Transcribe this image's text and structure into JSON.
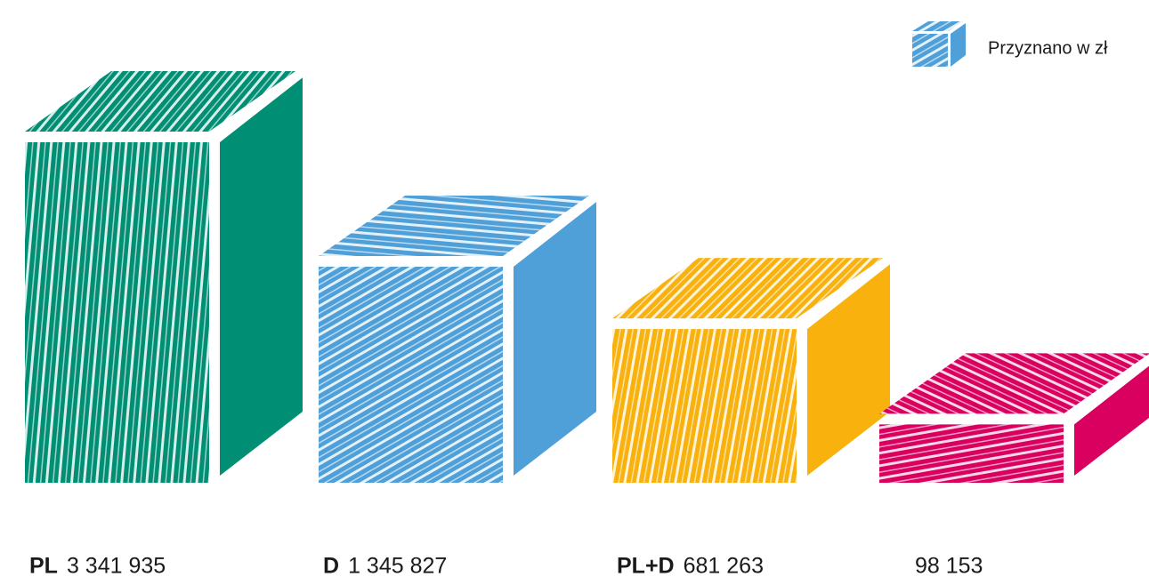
{
  "chart_data": {
    "type": "bar",
    "legend": "Przyznano w zł",
    "legend_color": "#4f9fd8",
    "scale": "sqrt",
    "categories": [
      "PL",
      "D",
      "PL+D",
      null
    ],
    "values": [
      3341935,
      1345827,
      681263,
      98153
    ],
    "value_labels": [
      "3 341 935",
      "1 345 827",
      "681 263",
      "98 153"
    ],
    "colors": [
      "#008f74",
      "#4f9fd8",
      "#f8b10d",
      "#d9005f"
    ]
  }
}
